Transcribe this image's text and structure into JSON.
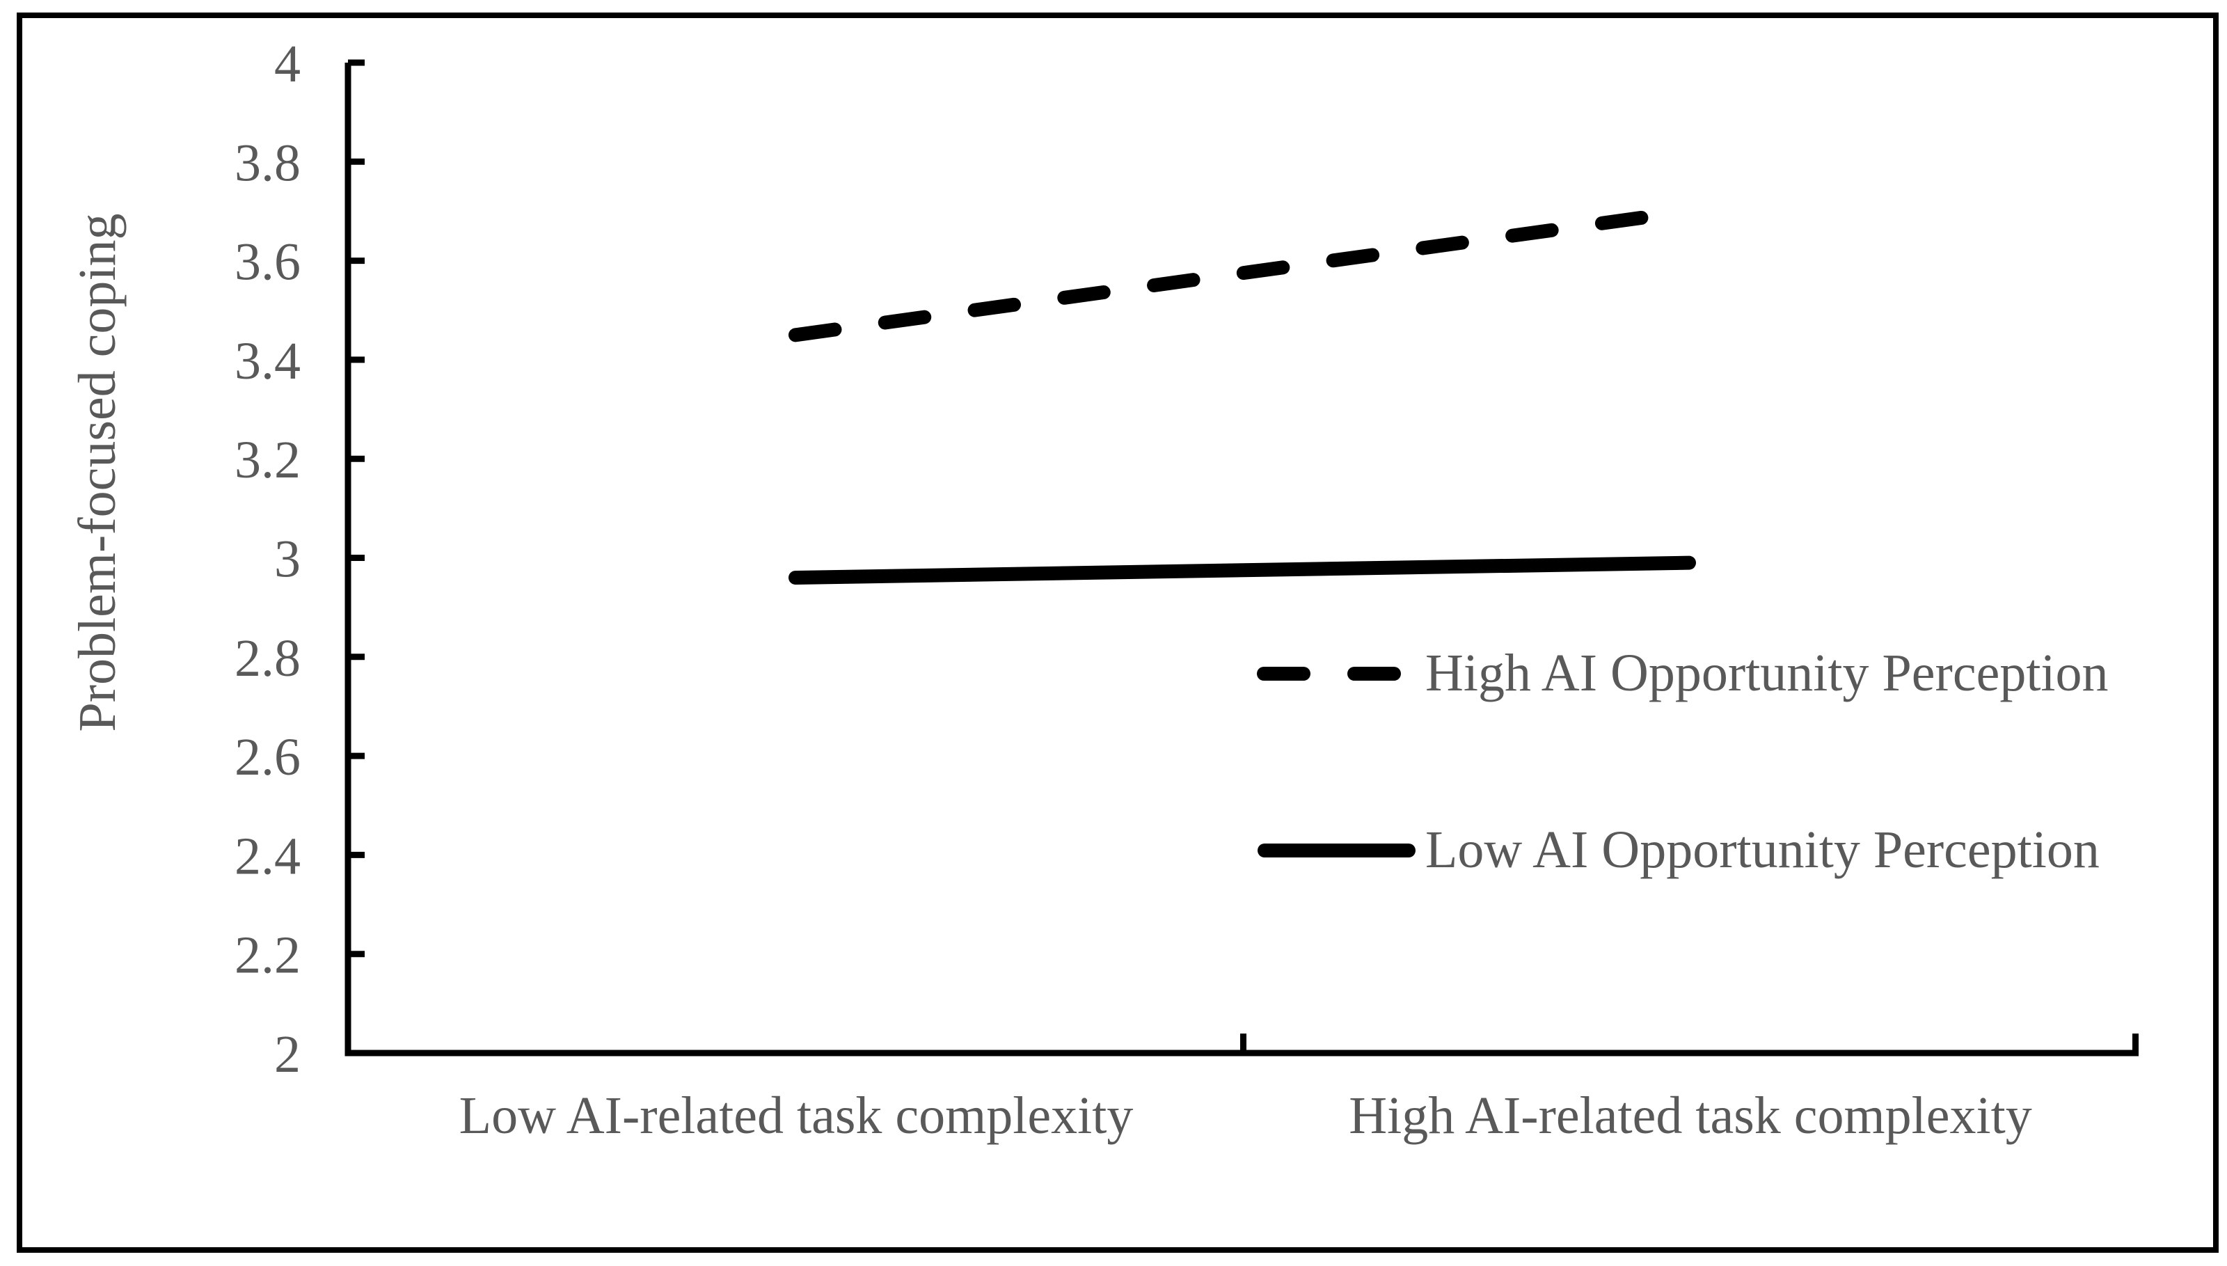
{
  "figure": {
    "background": "#ffffff",
    "border_color": "#000000"
  },
  "chart_data": {
    "type": "line",
    "title": "",
    "xlabel": "",
    "ylabel": "Problem-focused coping",
    "categories": [
      "Low AI-related task complexity",
      "High AI-related task complexity"
    ],
    "series": [
      {
        "name": "High AI Opportunity Perception",
        "style": "dashed",
        "color": "#000000",
        "values": [
          3.45,
          3.7
        ]
      },
      {
        "name": "Low AI Opportunity Perception",
        "style": "solid",
        "color": "#000000",
        "values": [
          2.96,
          2.99
        ]
      }
    ],
    "ylim": [
      2,
      4
    ],
    "ytick_step": 0.2,
    "ytick_labels": [
      "4",
      "3.8",
      "3.6",
      "3.4",
      "3.2",
      "3",
      "2.8",
      "2.6",
      "2.4",
      "2.2",
      "2"
    ],
    "grid": false,
    "legend_position": "inside-right",
    "text_color": "#595959",
    "line_color": "#000000"
  }
}
